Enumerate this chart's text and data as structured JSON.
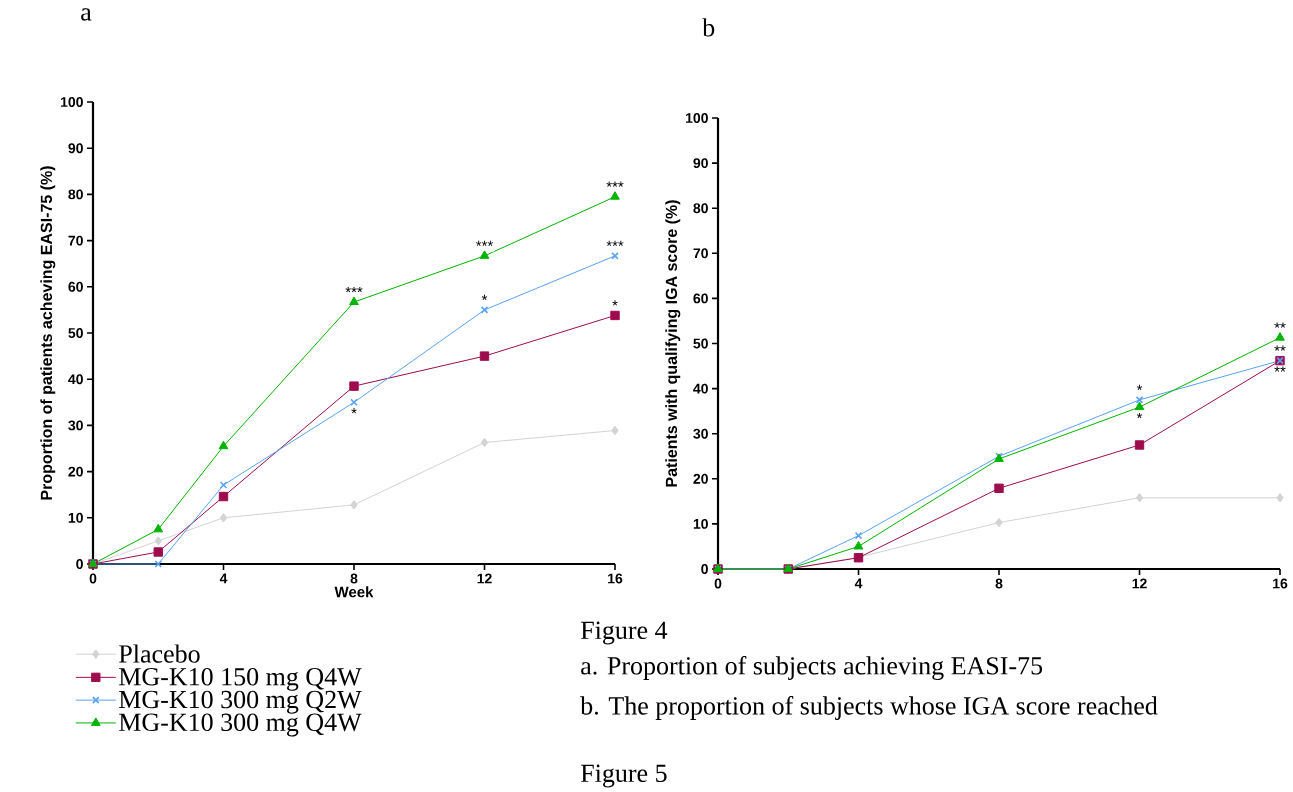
{
  "chart_data": [
    {
      "type": "line",
      "title": "a",
      "xlabel": "Week",
      "ylabel": "Proportion of patients acheving EASI-75 (%)",
      "x": [
        0,
        2,
        4,
        8,
        12,
        16
      ],
      "xlim": [
        0,
        16
      ],
      "ylim": [
        0,
        100
      ],
      "xticks": [
        0,
        4,
        8,
        12,
        16
      ],
      "yticks": [
        0,
        10,
        20,
        30,
        40,
        50,
        60,
        70,
        80,
        90,
        100
      ],
      "legend": "bottom left",
      "series": [
        {
          "name": "Placebo",
          "color": "#d3d3d3",
          "marker": "diamond",
          "values": [
            0,
            5,
            10,
            12.8,
            26.3,
            28.9
          ]
        },
        {
          "name": "MG-K10 150 mg Q4W",
          "color": "#9e0c4e",
          "marker": "square",
          "values": [
            0,
            2.6,
            14.6,
            38.5,
            45,
            53.8
          ]
        },
        {
          "name": "MG-K10 300 mg Q2W",
          "color": "#5aa2f2",
          "marker": "cross",
          "values": [
            0,
            0,
            17.1,
            35,
            55,
            66.7
          ]
        },
        {
          "name": "MG-K10 300 mg Q4W",
          "color": "#00b400",
          "marker": "triangle",
          "values": [
            0,
            7.5,
            25.5,
            56.7,
            66.7,
            79.5
          ]
        }
      ],
      "annotations": [
        {
          "text": "***",
          "x": 8,
          "y": 56.7
        },
        {
          "text": "***",
          "x": 12,
          "y": 66.7
        },
        {
          "text": "***",
          "x": 16,
          "y": 79.5
        },
        {
          "text": "***",
          "x": 16,
          "y": 66.7
        },
        {
          "text": "*",
          "x": 12,
          "y": 55
        },
        {
          "text": "*",
          "x": 16,
          "y": 53.8
        },
        {
          "text": "*",
          "x": 8,
          "y": 35
        }
      ]
    },
    {
      "type": "line",
      "title": "b",
      "ylabel": "Patients with qualifying IGA score (%)",
      "x": [
        0,
        2,
        4,
        8,
        12,
        16
      ],
      "xlim": [
        0,
        16
      ],
      "ylim": [
        0,
        100
      ],
      "xticks": [
        0,
        4,
        8,
        12,
        16
      ],
      "yticks": [
        0,
        10,
        20,
        30,
        40,
        50,
        60,
        70,
        80,
        90,
        100
      ],
      "series": [
        {
          "color": "#d3d3d3",
          "marker": "diamond",
          "values": [
            0,
            0,
            2.6,
            10.3,
            15.8,
            15.8
          ]
        },
        {
          "color": "#9e0c4e",
          "marker": "square",
          "values": [
            0,
            0,
            2.5,
            17.9,
            27.5,
            46.2
          ]
        },
        {
          "color": "#5aa2f2",
          "marker": "cross",
          "values": [
            0,
            0,
            7.4,
            25,
            37.5,
            46.2
          ]
        },
        {
          "color": "#00b400",
          "marker": "triangle",
          "values": [
            0,
            0,
            5,
            24.4,
            35.9,
            51.3
          ]
        }
      ],
      "annotations": [
        {
          "text": "*",
          "x": 12,
          "y": 37.5
        },
        {
          "text": "*",
          "x": 12,
          "y": 35.9
        },
        {
          "text": "**",
          "x": 16,
          "y": 51.3
        },
        {
          "text": "**",
          "x": 16,
          "y": 46.2
        },
        {
          "text": "**",
          "x": 16,
          "y": 46.2
        },
        "Figure 4",
        "a. Proportion of subjects achieving EASI-75",
        "b. The proportion of subjects whose IGA score reached",
        "Figure 5"
      ]
    }
  ]
}
